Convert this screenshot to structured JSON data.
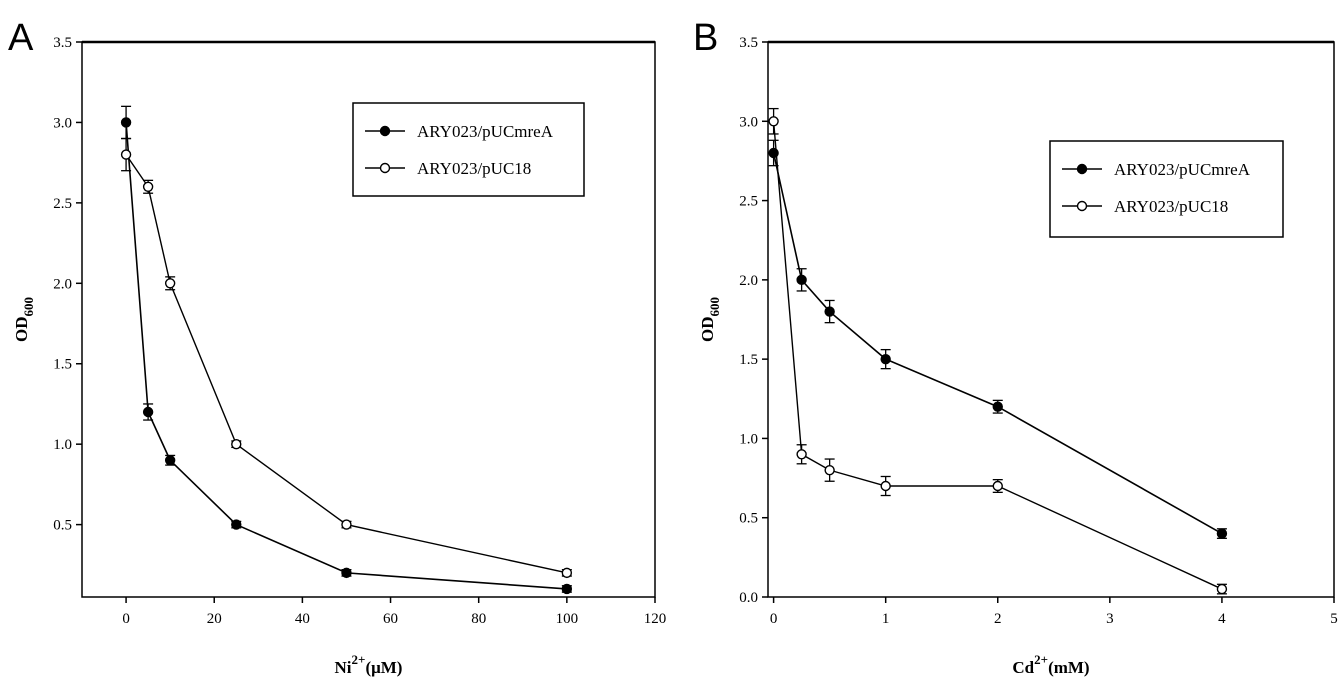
{
  "chart_data": [
    {
      "panel": "A",
      "type": "line",
      "xlabel": "Ni2+(μM)",
      "ylabel": "OD600",
      "xlim": [
        -10,
        120
      ],
      "ylim": [
        0.05,
        3.5
      ],
      "xticks": [
        0,
        20,
        40,
        60,
        80,
        100,
        120
      ],
      "yticks": [
        0.5,
        1.0,
        1.5,
        2.0,
        2.5,
        3.0,
        3.5
      ],
      "legend_position": "top-right",
      "x": [
        0,
        5,
        10,
        25,
        50,
        100
      ],
      "series": [
        {
          "name": "ARY023/pUCmreA",
          "marker": "filled-circle",
          "values": [
            3.0,
            1.2,
            0.9,
            0.5,
            0.2,
            0.1
          ],
          "errors": [
            0.1,
            0.05,
            0.03,
            0.02,
            0.02,
            0.02
          ]
        },
        {
          "name": "ARY023/pUC18",
          "marker": "open-circle",
          "values": [
            2.8,
            2.6,
            2.0,
            1.0,
            0.5,
            0.2
          ],
          "errors": [
            0.1,
            0.04,
            0.04,
            0.02,
            0.02,
            0.02
          ]
        }
      ]
    },
    {
      "panel": "B",
      "type": "line",
      "xlabel": "Cd2+(mM)",
      "ylabel": "OD600",
      "xlim": [
        -0.05,
        5
      ],
      "ylim": [
        0.0,
        3.5
      ],
      "xticks": [
        0,
        1,
        2,
        3,
        4,
        5
      ],
      "yticks": [
        0.0,
        0.5,
        1.0,
        1.5,
        2.0,
        2.5,
        3.0,
        3.5
      ],
      "legend_position": "top-right",
      "x": [
        0,
        0.25,
        0.5,
        1,
        2,
        4
      ],
      "series": [
        {
          "name": "ARY023/pUCmreA",
          "marker": "filled-circle",
          "values": [
            2.8,
            2.0,
            1.8,
            1.5,
            1.2,
            0.4
          ],
          "errors": [
            0.08,
            0.07,
            0.07,
            0.06,
            0.04,
            0.03
          ]
        },
        {
          "name": "ARY023/pUC18",
          "marker": "open-circle",
          "values": [
            3.0,
            0.9,
            0.8,
            0.7,
            0.7,
            0.05
          ],
          "errors": [
            0.08,
            0.06,
            0.07,
            0.06,
            0.04,
            0.03
          ]
        }
      ]
    }
  ]
}
